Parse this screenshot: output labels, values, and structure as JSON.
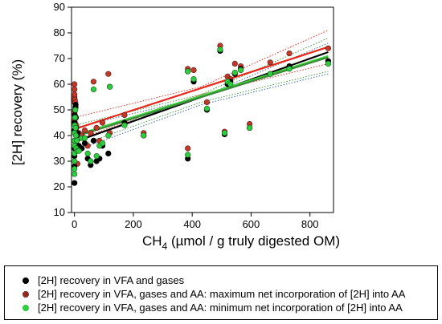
{
  "chart_data": {
    "type": "scatter",
    "xlabel": "CH",
    "xlabel_sub": "4",
    "xlabel_rest": " (µmol / g truly digested OM)",
    "ylabel": "[2H] recovery (%)",
    "xlim": [
      -10,
      880
    ],
    "ylim": [
      10,
      90
    ],
    "x_ticks": [
      0,
      200,
      400,
      600,
      800
    ],
    "y_ticks": [
      10,
      20,
      30,
      40,
      50,
      60,
      70,
      80,
      90
    ],
    "grid": false,
    "legend_position": "bottom",
    "series": [
      {
        "name": "[2H] recovery in VFA and gases",
        "color": "#000000",
        "x": [
          0,
          0,
          0,
          0,
          0,
          0,
          0,
          1,
          2,
          3,
          4,
          5,
          6,
          8,
          10,
          15,
          25,
          35,
          45,
          55,
          65,
          75,
          85,
          95,
          115,
          120,
          170,
          235,
          385,
          385,
          405,
          450,
          495,
          510,
          520,
          530,
          545,
          565,
          595,
          665,
          730,
          862
        ],
        "y": [
          21.5,
          28,
          32,
          35,
          38,
          42,
          45,
          48,
          50,
          51,
          52,
          47,
          43,
          40,
          41,
          36,
          35,
          37,
          31,
          28.5,
          38,
          30,
          31,
          36,
          33,
          59,
          45,
          40,
          31,
          65,
          61,
          50,
          73,
          40.5,
          60,
          61,
          64,
          66,
          43,
          64,
          67,
          69
        ]
      },
      {
        "name": "[2H] recovery in VFA, gases and AA: maximum net incorporation of [2H] into AA",
        "color": "#c0392b",
        "x": [
          0,
          0,
          0,
          0,
          0,
          0,
          0,
          1,
          2,
          3,
          4,
          5,
          6,
          8,
          10,
          15,
          25,
          35,
          45,
          55,
          65,
          75,
          85,
          95,
          115,
          120,
          170,
          235,
          385,
          385,
          405,
          450,
          495,
          510,
          520,
          530,
          545,
          565,
          595,
          665,
          730,
          862
        ],
        "y": [
          60,
          53,
          55,
          58,
          49,
          56,
          46,
          54,
          45,
          53,
          51,
          37,
          44,
          35,
          29,
          41,
          40,
          42,
          36,
          41,
          61,
          43,
          38,
          45,
          64,
          41,
          48,
          41,
          35,
          66,
          65.5,
          53,
          75,
          41.5,
          63,
          62,
          68,
          67,
          44.5,
          68.5,
          72,
          74
        ]
      },
      {
        "name": "[2H] recovery in VFA, gases and AA: minimum net incorporation of [2H] into AA",
        "color": "#2ecc40",
        "x": [
          0,
          0,
          0,
          0,
          0,
          0,
          0,
          1,
          2,
          3,
          4,
          5,
          6,
          8,
          10,
          15,
          25,
          35,
          45,
          55,
          65,
          75,
          85,
          95,
          115,
          120,
          170,
          235,
          385,
          385,
          405,
          450,
          495,
          510,
          520,
          530,
          545,
          565,
          595,
          665,
          730,
          862
        ],
        "y": [
          25,
          27,
          30,
          33,
          36,
          38,
          41,
          44,
          47,
          50,
          43,
          40,
          35,
          38,
          34,
          34,
          39,
          39,
          33,
          30,
          58,
          32,
          36,
          37,
          40,
          59,
          44,
          40,
          32.5,
          65,
          62,
          50.5,
          73.5,
          41,
          61,
          60,
          64.5,
          65.5,
          43,
          64,
          66,
          68
        ]
      }
    ],
    "regression_lines": [
      {
        "color": "#000000",
        "x": [
          0,
          862
        ],
        "y": [
          37.5,
          72.5
        ]
      },
      {
        "color": "#e8271b",
        "x": [
          0,
          862
        ],
        "y": [
          42.5,
          74.5
        ]
      },
      {
        "color": "#3fd33a",
        "x": [
          0,
          862
        ],
        "y": [
          40,
          71
        ]
      },
      {
        "color": "#3a8a3a",
        "x": [
          0,
          862
        ],
        "y": [
          39.5,
          70.5
        ]
      }
    ],
    "confidence_bands": [
      {
        "color": "#e8271b",
        "x": [
          0,
          430,
          862
        ],
        "upper": [
          47,
          59,
          81
        ],
        "lower": [
          38,
          56,
          68
        ]
      },
      {
        "color": "#3a9a3a",
        "x": [
          0,
          430,
          862
        ],
        "upper": [
          44,
          56,
          78
        ],
        "lower": [
          35.5,
          53,
          65
        ]
      },
      {
        "color": "#3a6a9a",
        "x": [
          0,
          430,
          862
        ],
        "upper": [
          43,
          55,
          76
        ],
        "lower": [
          34,
          52,
          64
        ]
      }
    ]
  }
}
